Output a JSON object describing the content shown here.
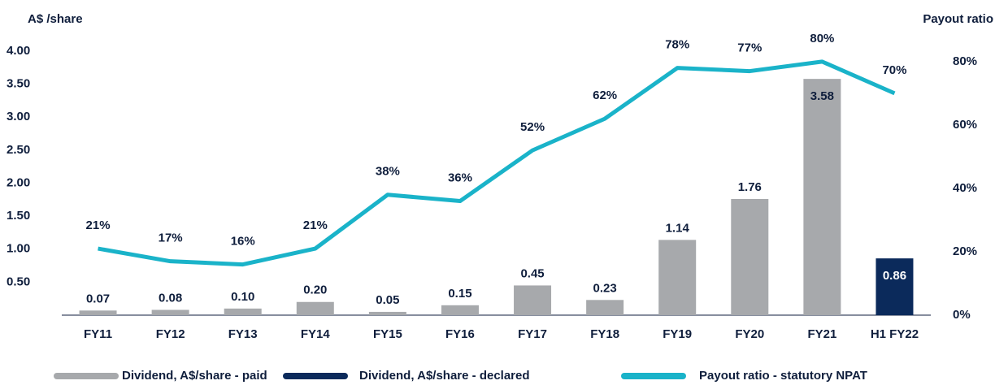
{
  "chart_data": {
    "type": "bar_line",
    "y_label": "A$ /share",
    "y2_label": "Payout ratio",
    "categories": [
      "FY11",
      "FY12",
      "FY13",
      "FY14",
      "FY15",
      "FY16",
      "FY17",
      "FY18",
      "FY19",
      "FY20",
      "FY21",
      "H1 FY22"
    ],
    "series": [
      {
        "name": "Dividend, A$/share - paid",
        "type": "bar",
        "color": "#a7a9ac",
        "values": [
          0.07,
          0.08,
          0.1,
          0.2,
          0.05,
          0.15,
          0.45,
          0.23,
          1.14,
          1.76,
          3.58,
          null
        ],
        "value_labels": [
          "0.07",
          "0.08",
          "0.10",
          "0.20",
          "0.05",
          "0.15",
          "0.45",
          "0.23",
          "1.14",
          "1.76",
          "3.58",
          null
        ]
      },
      {
        "name": "Dividend, A$/share - declared",
        "type": "bar",
        "color": "#0b2a5b",
        "values": [
          null,
          null,
          null,
          null,
          null,
          null,
          null,
          null,
          null,
          null,
          null,
          0.86
        ],
        "value_labels": [
          null,
          null,
          null,
          null,
          null,
          null,
          null,
          null,
          null,
          null,
          null,
          "0.86"
        ]
      },
      {
        "name": "Payout ratio - statutory NPAT",
        "type": "line",
        "axis": "y2",
        "color": "#1ab3c9",
        "values": [
          21,
          17,
          16,
          21,
          38,
          36,
          52,
          62,
          78,
          77,
          80,
          70
        ],
        "value_labels": [
          "21%",
          "17%",
          "16%",
          "21%",
          "38%",
          "36%",
          "52%",
          "62%",
          "78%",
          "77%",
          "80%",
          "70%"
        ]
      }
    ],
    "ylim": [
      0,
      4
    ],
    "yticks": [
      {
        "value": 0.5,
        "label": "0.50"
      },
      {
        "value": 1,
        "label": "1.00"
      },
      {
        "value": 1.5,
        "label": "1.50"
      },
      {
        "value": 2,
        "label": "2.00"
      },
      {
        "value": 2.5,
        "label": "2.50"
      },
      {
        "value": 3,
        "label": "3.00"
      },
      {
        "value": 3.5,
        "label": "3.50"
      },
      {
        "value": 4,
        "label": "4.00"
      }
    ],
    "y2lim": [
      0,
      83.3
    ],
    "y2ticks": [
      {
        "value": 0,
        "label": "0%"
      },
      {
        "value": 20,
        "label": "20%"
      },
      {
        "value": 40,
        "label": "40%"
      },
      {
        "value": 60,
        "label": "60%"
      },
      {
        "value": 80,
        "label": "80%"
      }
    ]
  }
}
